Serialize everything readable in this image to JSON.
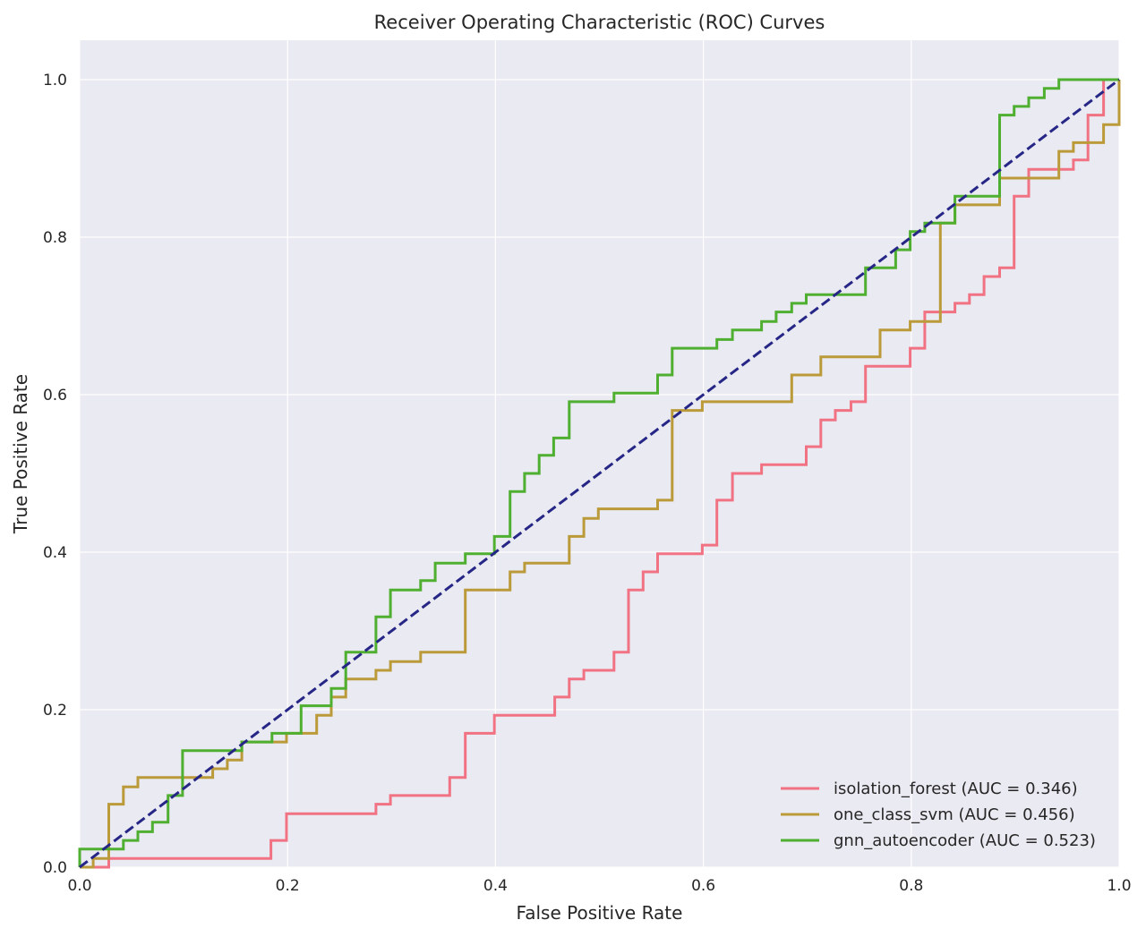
{
  "chart_data": {
    "type": "line",
    "title": "Receiver Operating Characteristic (ROC) Curves",
    "xlabel": "False Positive Rate",
    "ylabel": "True Positive Rate",
    "xlim": [
      0.0,
      1.0
    ],
    "ylim": [
      0.0,
      1.05
    ],
    "xticks": [
      "0.0",
      "0.2",
      "0.4",
      "0.6",
      "0.8",
      "1.0"
    ],
    "yticks": [
      "0.0",
      "0.2",
      "0.4",
      "0.6",
      "0.8",
      "1.0"
    ],
    "grid": true,
    "legend_position": "lower-right",
    "background": "#eaeaf2",
    "series": [
      {
        "name": "isolation_forest (AUC = 0.346)",
        "color": "#f07283",
        "points": [
          [
            0,
            0
          ],
          [
            0.028,
            0
          ],
          [
            0.028,
            0.011
          ],
          [
            0.184,
            0.011
          ],
          [
            0.184,
            0.034
          ],
          [
            0.199,
            0.034
          ],
          [
            0.199,
            0.068
          ],
          [
            0.285,
            0.068
          ],
          [
            0.285,
            0.08
          ],
          [
            0.299,
            0.08
          ],
          [
            0.299,
            0.091
          ],
          [
            0.356,
            0.091
          ],
          [
            0.356,
            0.114
          ],
          [
            0.371,
            0.114
          ],
          [
            0.371,
            0.17
          ],
          [
            0.399,
            0.17
          ],
          [
            0.399,
            0.193
          ],
          [
            0.457,
            0.193
          ],
          [
            0.457,
            0.216
          ],
          [
            0.471,
            0.216
          ],
          [
            0.471,
            0.239
          ],
          [
            0.485,
            0.239
          ],
          [
            0.485,
            0.25
          ],
          [
            0.514,
            0.25
          ],
          [
            0.514,
            0.273
          ],
          [
            0.528,
            0.273
          ],
          [
            0.528,
            0.352
          ],
          [
            0.542,
            0.352
          ],
          [
            0.542,
            0.375
          ],
          [
            0.556,
            0.375
          ],
          [
            0.556,
            0.398
          ],
          [
            0.599,
            0.398
          ],
          [
            0.599,
            0.409
          ],
          [
            0.613,
            0.409
          ],
          [
            0.613,
            0.466
          ],
          [
            0.628,
            0.466
          ],
          [
            0.628,
            0.5
          ],
          [
            0.656,
            0.5
          ],
          [
            0.656,
            0.511
          ],
          [
            0.699,
            0.511
          ],
          [
            0.699,
            0.534
          ],
          [
            0.713,
            0.534
          ],
          [
            0.713,
            0.568
          ],
          [
            0.727,
            0.568
          ],
          [
            0.727,
            0.58
          ],
          [
            0.742,
            0.58
          ],
          [
            0.742,
            0.591
          ],
          [
            0.756,
            0.591
          ],
          [
            0.756,
            0.636
          ],
          [
            0.799,
            0.636
          ],
          [
            0.799,
            0.659
          ],
          [
            0.813,
            0.659
          ],
          [
            0.813,
            0.705
          ],
          [
            0.842,
            0.705
          ],
          [
            0.842,
            0.716
          ],
          [
            0.856,
            0.716
          ],
          [
            0.856,
            0.727
          ],
          [
            0.87,
            0.727
          ],
          [
            0.87,
            0.75
          ],
          [
            0.885,
            0.75
          ],
          [
            0.885,
            0.761
          ],
          [
            0.899,
            0.761
          ],
          [
            0.899,
            0.852
          ],
          [
            0.913,
            0.852
          ],
          [
            0.913,
            0.886
          ],
          [
            0.956,
            0.886
          ],
          [
            0.956,
            0.898
          ],
          [
            0.97,
            0.898
          ],
          [
            0.97,
            0.955
          ],
          [
            0.985,
            0.955
          ],
          [
            0.985,
            1.0
          ],
          [
            1.0,
            1.0
          ]
        ]
      },
      {
        "name": "one_class_svm (AUC = 0.456)",
        "color": "#bb9a3a",
        "points": [
          [
            0,
            0
          ],
          [
            0.013,
            0
          ],
          [
            0.013,
            0.011
          ],
          [
            0.028,
            0.011
          ],
          [
            0.028,
            0.08
          ],
          [
            0.042,
            0.08
          ],
          [
            0.042,
            0.102
          ],
          [
            0.056,
            0.102
          ],
          [
            0.056,
            0.114
          ],
          [
            0.128,
            0.114
          ],
          [
            0.128,
            0.125
          ],
          [
            0.142,
            0.125
          ],
          [
            0.142,
            0.136
          ],
          [
            0.156,
            0.136
          ],
          [
            0.156,
            0.159
          ],
          [
            0.199,
            0.159
          ],
          [
            0.199,
            0.17
          ],
          [
            0.228,
            0.17
          ],
          [
            0.228,
            0.193
          ],
          [
            0.242,
            0.193
          ],
          [
            0.242,
            0.216
          ],
          [
            0.256,
            0.216
          ],
          [
            0.256,
            0.239
          ],
          [
            0.285,
            0.239
          ],
          [
            0.285,
            0.25
          ],
          [
            0.299,
            0.25
          ],
          [
            0.299,
            0.261
          ],
          [
            0.328,
            0.261
          ],
          [
            0.328,
            0.273
          ],
          [
            0.371,
            0.273
          ],
          [
            0.371,
            0.352
          ],
          [
            0.414,
            0.352
          ],
          [
            0.414,
            0.375
          ],
          [
            0.428,
            0.375
          ],
          [
            0.428,
            0.386
          ],
          [
            0.471,
            0.386
          ],
          [
            0.471,
            0.42
          ],
          [
            0.485,
            0.42
          ],
          [
            0.485,
            0.443
          ],
          [
            0.499,
            0.443
          ],
          [
            0.499,
            0.455
          ],
          [
            0.556,
            0.455
          ],
          [
            0.556,
            0.466
          ],
          [
            0.57,
            0.466
          ],
          [
            0.57,
            0.58
          ],
          [
            0.599,
            0.58
          ],
          [
            0.599,
            0.591
          ],
          [
            0.685,
            0.591
          ],
          [
            0.685,
            0.625
          ],
          [
            0.713,
            0.625
          ],
          [
            0.713,
            0.648
          ],
          [
            0.77,
            0.648
          ],
          [
            0.77,
            0.682
          ],
          [
            0.799,
            0.682
          ],
          [
            0.799,
            0.693
          ],
          [
            0.828,
            0.693
          ],
          [
            0.828,
            0.818
          ],
          [
            0.842,
            0.818
          ],
          [
            0.842,
            0.841
          ],
          [
            0.885,
            0.841
          ],
          [
            0.885,
            0.875
          ],
          [
            0.942,
            0.875
          ],
          [
            0.942,
            0.909
          ],
          [
            0.956,
            0.909
          ],
          [
            0.956,
            0.92
          ],
          [
            0.985,
            0.92
          ],
          [
            0.985,
            0.943
          ],
          [
            1.0,
            0.943
          ],
          [
            1.0,
            1.0
          ]
        ]
      },
      {
        "name": "gnn_autoencoder (AUC = 0.523)",
        "color": "#4faf30",
        "points": [
          [
            0,
            0
          ],
          [
            0,
            0.023
          ],
          [
            0.042,
            0.023
          ],
          [
            0.042,
            0.034
          ],
          [
            0.056,
            0.034
          ],
          [
            0.056,
            0.045
          ],
          [
            0.07,
            0.045
          ],
          [
            0.07,
            0.057
          ],
          [
            0.085,
            0.057
          ],
          [
            0.085,
            0.091
          ],
          [
            0.099,
            0.091
          ],
          [
            0.099,
            0.148
          ],
          [
            0.156,
            0.148
          ],
          [
            0.156,
            0.159
          ],
          [
            0.185,
            0.159
          ],
          [
            0.185,
            0.17
          ],
          [
            0.213,
            0.17
          ],
          [
            0.213,
            0.205
          ],
          [
            0.242,
            0.205
          ],
          [
            0.242,
            0.227
          ],
          [
            0.256,
            0.227
          ],
          [
            0.256,
            0.273
          ],
          [
            0.285,
            0.273
          ],
          [
            0.285,
            0.318
          ],
          [
            0.299,
            0.318
          ],
          [
            0.299,
            0.352
          ],
          [
            0.328,
            0.352
          ],
          [
            0.328,
            0.364
          ],
          [
            0.342,
            0.364
          ],
          [
            0.342,
            0.386
          ],
          [
            0.371,
            0.386
          ],
          [
            0.371,
            0.398
          ],
          [
            0.399,
            0.398
          ],
          [
            0.399,
            0.42
          ],
          [
            0.414,
            0.42
          ],
          [
            0.414,
            0.477
          ],
          [
            0.428,
            0.477
          ],
          [
            0.428,
            0.5
          ],
          [
            0.442,
            0.5
          ],
          [
            0.442,
            0.523
          ],
          [
            0.456,
            0.523
          ],
          [
            0.456,
            0.545
          ],
          [
            0.471,
            0.545
          ],
          [
            0.471,
            0.591
          ],
          [
            0.514,
            0.591
          ],
          [
            0.514,
            0.602
          ],
          [
            0.556,
            0.602
          ],
          [
            0.556,
            0.625
          ],
          [
            0.57,
            0.625
          ],
          [
            0.57,
            0.659
          ],
          [
            0.613,
            0.659
          ],
          [
            0.613,
            0.67
          ],
          [
            0.628,
            0.67
          ],
          [
            0.628,
            0.682
          ],
          [
            0.656,
            0.682
          ],
          [
            0.656,
            0.693
          ],
          [
            0.67,
            0.693
          ],
          [
            0.67,
            0.705
          ],
          [
            0.685,
            0.705
          ],
          [
            0.685,
            0.716
          ],
          [
            0.699,
            0.716
          ],
          [
            0.699,
            0.727
          ],
          [
            0.756,
            0.727
          ],
          [
            0.756,
            0.761
          ],
          [
            0.785,
            0.761
          ],
          [
            0.785,
            0.784
          ],
          [
            0.799,
            0.784
          ],
          [
            0.799,
            0.807
          ],
          [
            0.813,
            0.807
          ],
          [
            0.813,
            0.818
          ],
          [
            0.842,
            0.818
          ],
          [
            0.842,
            0.852
          ],
          [
            0.885,
            0.852
          ],
          [
            0.885,
            0.955
          ],
          [
            0.899,
            0.955
          ],
          [
            0.899,
            0.966
          ],
          [
            0.913,
            0.966
          ],
          [
            0.913,
            0.977
          ],
          [
            0.928,
            0.977
          ],
          [
            0.928,
            0.989
          ],
          [
            0.942,
            0.989
          ],
          [
            0.942,
            1.0
          ],
          [
            1.0,
            1.0
          ]
        ]
      }
    ],
    "reference_line": {
      "color": "#262686",
      "style": "dashed",
      "points": [
        [
          0,
          0
        ],
        [
          1,
          1
        ]
      ]
    }
  }
}
